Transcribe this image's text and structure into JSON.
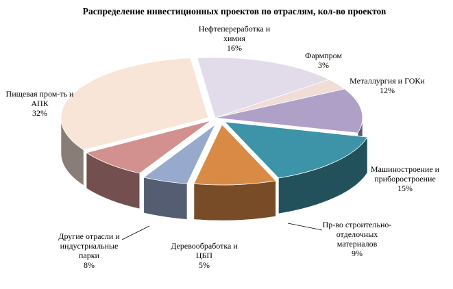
{
  "chart_data": {
    "type": "pie",
    "title": "Распределение инвестиционных проектов по отраслям, кол-во проектов",
    "slices": [
      {
        "key": "neft",
        "label_lines": [
          "Нефтепереработка и",
          "химия"
        ],
        "value": 16,
        "value_label": "16%",
        "color": "#e2dcea"
      },
      {
        "key": "farm",
        "label_lines": [
          "Фармпром"
        ],
        "value": 3,
        "value_label": "3%",
        "color": "#f0ddd6"
      },
      {
        "key": "metal",
        "label_lines": [
          "Металлургия и ГОКи"
        ],
        "value": 12,
        "value_label": "12%",
        "color": "#afa0c8"
      },
      {
        "key": "mash",
        "label_lines": [
          "Машиностроение и",
          "приборостроение"
        ],
        "value": 15,
        "value_label": "15%",
        "color": "#3d93a7"
      },
      {
        "key": "stroy",
        "label_lines": [
          "Пр-во строительно-",
          "отделочных",
          "материалов"
        ],
        "value": 9,
        "value_label": "9%",
        "color": "#d98b45"
      },
      {
        "key": "derevo",
        "label_lines": [
          "Деревообработка и",
          "ЦБП"
        ],
        "value": 5,
        "value_label": "5%",
        "color": "#98a9ce"
      },
      {
        "key": "drugie",
        "label_lines": [
          "Другие отрасли и",
          "индустриальные",
          "парки"
        ],
        "value": 8,
        "value_label": "8%",
        "color": "#d2908f"
      },
      {
        "key": "pish",
        "label_lines": [
          "Пищевая пром-ть и",
          "АПК"
        ],
        "value": 32,
        "value_label": "32%",
        "color": "#f8e5d8"
      }
    ]
  }
}
